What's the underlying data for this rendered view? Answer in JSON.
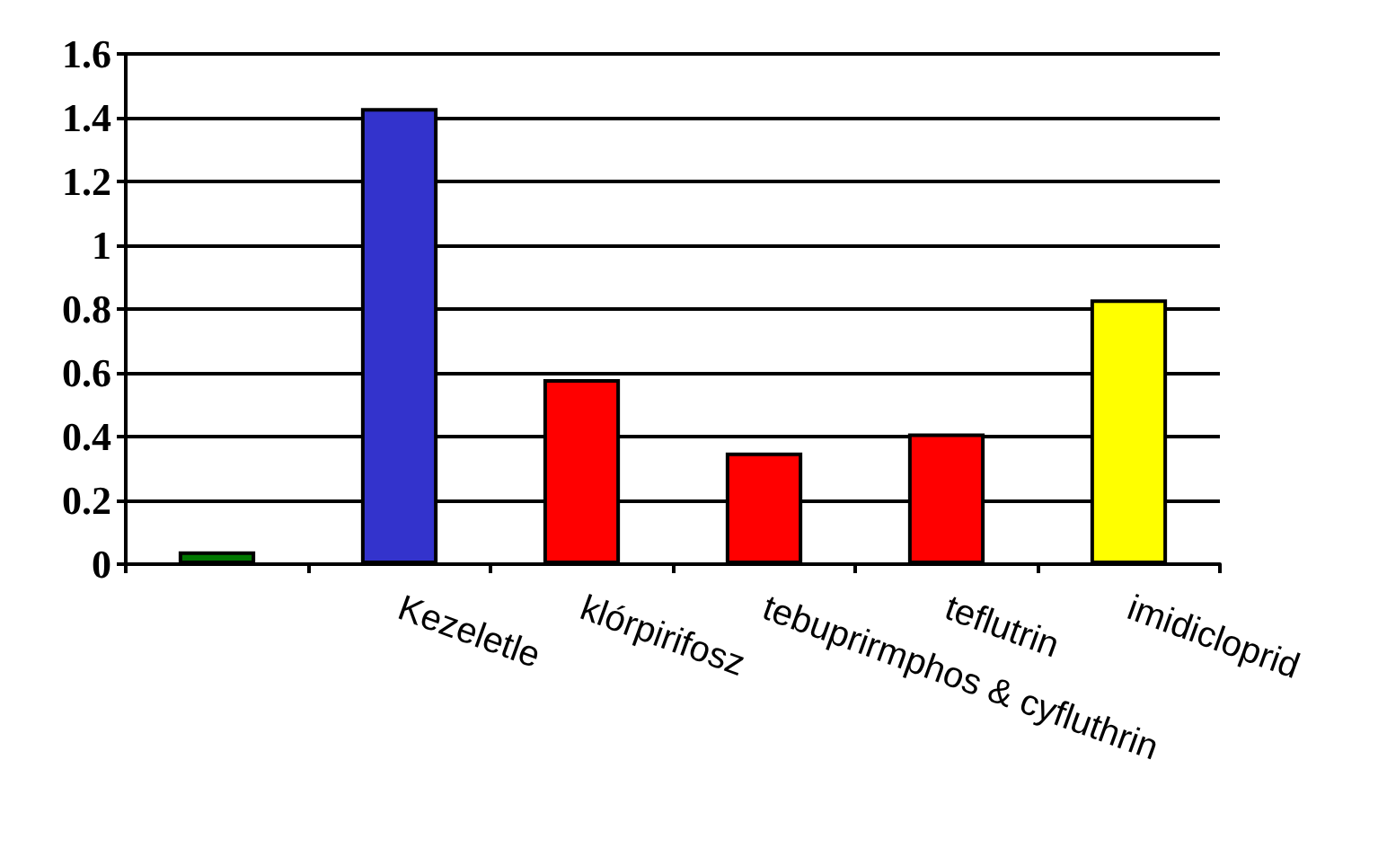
{
  "chart_data": {
    "type": "bar",
    "categories": [
      null,
      "Kezeletle",
      "klórpirifosz",
      "tebuprirmphos & cyfluthrin",
      "teflutrin",
      "imidicloprid"
    ],
    "values": [
      0.04,
      1.43,
      0.58,
      0.35,
      0.41,
      0.83
    ],
    "colors": [
      "#007700",
      "#3333cc",
      "#ff0000",
      "#ff0000",
      "#ff0000",
      "#ffff00"
    ],
    "ylim": [
      0,
      1.6
    ],
    "yticks": [
      0,
      0.2,
      0.4,
      0.6,
      0.8,
      1,
      1.2,
      1.4,
      1.6
    ],
    "grid": "y"
  }
}
